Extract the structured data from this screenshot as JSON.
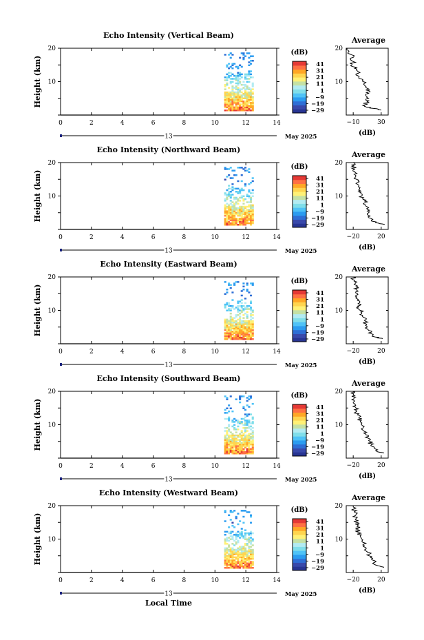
{
  "figure": {
    "xlabel": "Local Time",
    "date_day": "13",
    "date_month": "May 2025",
    "ylabel": "Height (km)",
    "cbar_unit": "(dB)",
    "cbar_ticks": [
      "41",
      "31",
      "21",
      "11",
      "1",
      "−9",
      "−19",
      "−29"
    ],
    "avg_title": "Average",
    "avg_xlabel": "(dB)"
  },
  "colorscale": [
    "#283593",
    "#3949ab",
    "#2f6fd6",
    "#2c9cf0",
    "#4fc3f7",
    "#80deea",
    "#b2ebf2",
    "#c5e1a5",
    "#fff176",
    "#ffd54f",
    "#ffa726",
    "#ff7043",
    "#e53935"
  ],
  "chart_data": [
    {
      "type": "heatmap",
      "title": "Echo Intensity (Vertical Beam)",
      "x_ticks": [
        "0",
        "2",
        "4",
        "6",
        "8",
        "10",
        "12",
        "14"
      ],
      "y_ticks": [
        "20",
        "10"
      ],
      "xlim": [
        0,
        14
      ],
      "ylim": [
        0,
        20
      ],
      "data_range": [
        10.6,
        12.5
      ],
      "colorbar": {
        "min": -29,
        "max": 41
      },
      "avg": {
        "x_ticks": [
          "−10",
          "30"
        ],
        "xlim": [
          -20,
          40
        ],
        "profile": [
          {
            "h": 1.5,
            "v": 30
          },
          {
            "h": 2,
            "v": 18
          },
          {
            "h": 2.5,
            "v": 8
          },
          {
            "h": 3,
            "v": 6
          },
          {
            "h": 4,
            "v": 10
          },
          {
            "h": 5,
            "v": 12
          },
          {
            "h": 6,
            "v": 8
          },
          {
            "h": 7,
            "v": 14
          },
          {
            "h": 8,
            "v": 10
          },
          {
            "h": 9,
            "v": 6
          },
          {
            "h": 10,
            "v": 4
          },
          {
            "h": 11,
            "v": -2
          },
          {
            "h": 12,
            "v": -6
          },
          {
            "h": 13,
            "v": -3
          },
          {
            "h": 14,
            "v": -8
          },
          {
            "h": 15,
            "v": -12
          },
          {
            "h": 16,
            "v": -10
          },
          {
            "h": 17,
            "v": -14
          },
          {
            "h": 18,
            "v": -12
          },
          {
            "h": 19,
            "v": -16
          },
          {
            "h": 20,
            "v": -18
          }
        ]
      }
    },
    {
      "type": "heatmap",
      "title": "Echo Intensity (Northward Beam)",
      "x_ticks": [
        "0",
        "2",
        "4",
        "6",
        "8",
        "10",
        "12",
        "14"
      ],
      "y_ticks": [
        "20",
        "10"
      ],
      "xlim": [
        0,
        14
      ],
      "ylim": [
        0,
        20
      ],
      "data_range": [
        10.6,
        12.5
      ],
      "colorbar": {
        "min": -29,
        "max": 41
      },
      "avg": {
        "x_ticks": [
          "−20",
          "20"
        ],
        "xlim": [
          -30,
          30
        ],
        "profile": [
          {
            "h": 1.5,
            "v": 25
          },
          {
            "h": 2,
            "v": 12
          },
          {
            "h": 3,
            "v": 8
          },
          {
            "h": 4,
            "v": 4
          },
          {
            "h": 5,
            "v": 2
          },
          {
            "h": 6,
            "v": 0
          },
          {
            "h": 7,
            "v": -2
          },
          {
            "h": 8,
            "v": -3
          },
          {
            "h": 9,
            "v": -6
          },
          {
            "h": 10,
            "v": -8
          },
          {
            "h": 11,
            "v": -9
          },
          {
            "h": 12,
            "v": -11
          },
          {
            "h": 13,
            "v": -12
          },
          {
            "h": 14,
            "v": -14
          },
          {
            "h": 15,
            "v": -15
          },
          {
            "h": 16,
            "v": -16
          },
          {
            "h": 17,
            "v": -17
          },
          {
            "h": 18,
            "v": -18
          },
          {
            "h": 19,
            "v": -19
          },
          {
            "h": 20,
            "v": -20
          }
        ]
      }
    },
    {
      "type": "heatmap",
      "title": "Echo Intensity (Eastward Beam)",
      "x_ticks": [
        "0",
        "2",
        "4",
        "6",
        "8",
        "10",
        "12",
        "14"
      ],
      "y_ticks": [
        "20",
        "10"
      ],
      "xlim": [
        0,
        14
      ],
      "ylim": [
        0,
        20
      ],
      "data_range": [
        10.6,
        12.5
      ],
      "colorbar": {
        "min": -29,
        "max": 41
      },
      "avg": {
        "x_ticks": [
          "−20",
          "20"
        ],
        "xlim": [
          -30,
          30
        ],
        "profile": [
          {
            "h": 1.5,
            "v": 22
          },
          {
            "h": 2,
            "v": 12
          },
          {
            "h": 3,
            "v": 6
          },
          {
            "h": 4,
            "v": 2
          },
          {
            "h": 5,
            "v": 0
          },
          {
            "h": 6,
            "v": -2
          },
          {
            "h": 7,
            "v": -4
          },
          {
            "h": 8,
            "v": -6
          },
          {
            "h": 9,
            "v": -8
          },
          {
            "h": 10,
            "v": -10
          },
          {
            "h": 11,
            "v": -12
          },
          {
            "h": 12,
            "v": -13
          },
          {
            "h": 13,
            "v": -14
          },
          {
            "h": 14,
            "v": -15
          },
          {
            "h": 15,
            "v": -14
          },
          {
            "h": 16,
            "v": -15
          },
          {
            "h": 17,
            "v": -16
          },
          {
            "h": 18,
            "v": -17
          },
          {
            "h": 19,
            "v": -18
          },
          {
            "h": 20,
            "v": -20
          }
        ]
      }
    },
    {
      "type": "heatmap",
      "title": "Echo Intensity (Southward Beam)",
      "x_ticks": [
        "0",
        "2",
        "4",
        "6",
        "8",
        "10",
        "12",
        "14"
      ],
      "y_ticks": [
        "20",
        "10"
      ],
      "xlim": [
        0,
        14
      ],
      "ylim": [
        0,
        20
      ],
      "data_range": [
        10.6,
        12.5
      ],
      "colorbar": {
        "min": -29,
        "max": 41
      },
      "avg": {
        "x_ticks": [
          "−20",
          "20"
        ],
        "xlim": [
          -30,
          30
        ],
        "profile": [
          {
            "h": 1.5,
            "v": 24
          },
          {
            "h": 2,
            "v": 14
          },
          {
            "h": 3,
            "v": 10
          },
          {
            "h": 4,
            "v": 6
          },
          {
            "h": 5,
            "v": 4
          },
          {
            "h": 6,
            "v": 1
          },
          {
            "h": 7,
            "v": -2
          },
          {
            "h": 8,
            "v": -4
          },
          {
            "h": 9,
            "v": -6
          },
          {
            "h": 10,
            "v": -8
          },
          {
            "h": 11,
            "v": -10
          },
          {
            "h": 12,
            "v": -12
          },
          {
            "h": 13,
            "v": -14
          },
          {
            "h": 14,
            "v": -15
          },
          {
            "h": 15,
            "v": -16
          },
          {
            "h": 16,
            "v": -17
          },
          {
            "h": 17,
            "v": -18
          },
          {
            "h": 18,
            "v": -19
          },
          {
            "h": 19,
            "v": -20
          },
          {
            "h": 20,
            "v": -21
          }
        ]
      }
    },
    {
      "type": "heatmap",
      "title": "Echo Intensity (Westward Beam)",
      "x_ticks": [
        "0",
        "2",
        "4",
        "6",
        "8",
        "10",
        "12",
        "14"
      ],
      "y_ticks": [
        "20",
        "10"
      ],
      "xlim": [
        0,
        14
      ],
      "ylim": [
        0,
        20
      ],
      "data_range": [
        10.6,
        12.5
      ],
      "colorbar": {
        "min": -29,
        "max": 41
      },
      "avg": {
        "x_ticks": [
          "−20",
          "20"
        ],
        "xlim": [
          -30,
          30
        ],
        "profile": [
          {
            "h": 1.5,
            "v": 24
          },
          {
            "h": 2,
            "v": 16
          },
          {
            "h": 3,
            "v": 10
          },
          {
            "h": 4,
            "v": 6
          },
          {
            "h": 5,
            "v": 3
          },
          {
            "h": 6,
            "v": 1
          },
          {
            "h": 7,
            "v": -2
          },
          {
            "h": 8,
            "v": -4
          },
          {
            "h": 9,
            "v": -6
          },
          {
            "h": 10,
            "v": -8
          },
          {
            "h": 11,
            "v": -10
          },
          {
            "h": 12,
            "v": -12
          },
          {
            "h": 13,
            "v": -13
          },
          {
            "h": 14,
            "v": -14
          },
          {
            "h": 15,
            "v": -15
          },
          {
            "h": 16,
            "v": -16
          },
          {
            "h": 17,
            "v": -17
          },
          {
            "h": 18,
            "v": -18
          },
          {
            "h": 19,
            "v": -19
          },
          {
            "h": 20,
            "v": -20
          }
        ]
      }
    }
  ]
}
